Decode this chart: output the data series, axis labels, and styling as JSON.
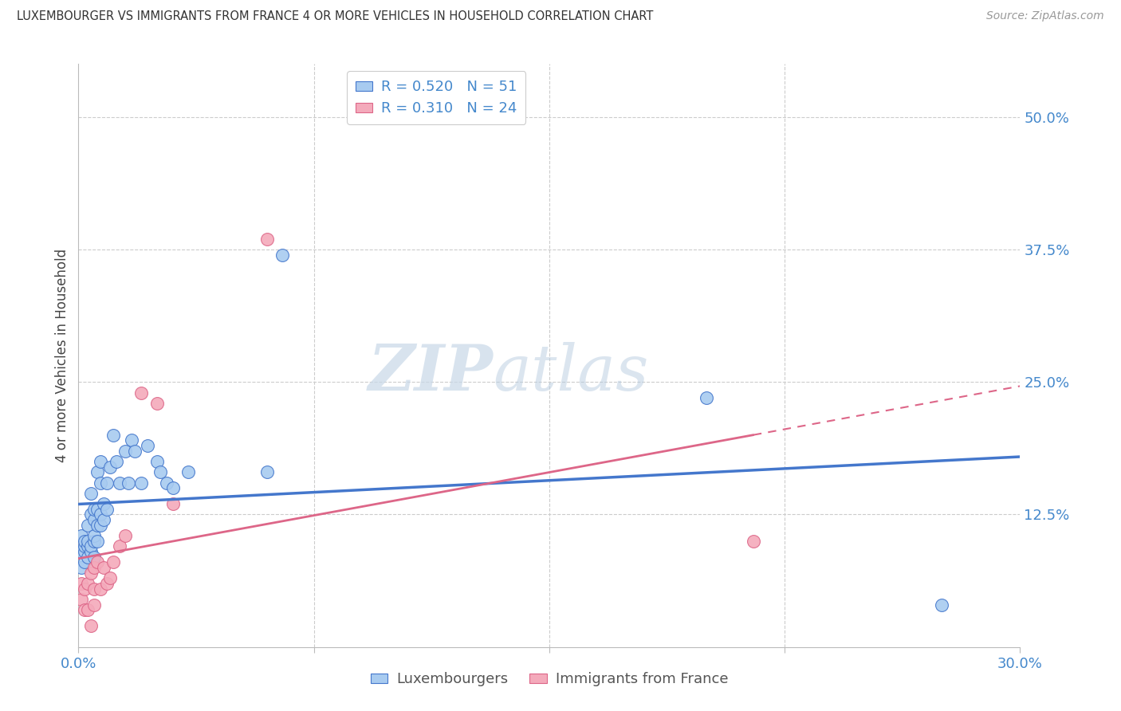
{
  "title": "LUXEMBOURGER VS IMMIGRANTS FROM FRANCE 4 OR MORE VEHICLES IN HOUSEHOLD CORRELATION CHART",
  "source": "Source: ZipAtlas.com",
  "ylabel": "4 or more Vehicles in Household",
  "xlim": [
    0.0,
    0.3
  ],
  "ylim": [
    0.0,
    0.55
  ],
  "yticks_right": [
    0.125,
    0.25,
    0.375,
    0.5
  ],
  "ytick_labels_right": [
    "12.5%",
    "25.0%",
    "37.5%",
    "50.0%"
  ],
  "blue_color": "#A8CBF0",
  "pink_color": "#F4AABB",
  "blue_line_color": "#4477CC",
  "pink_line_color": "#DD6688",
  "legend_blue_label": "R = 0.520   N = 51",
  "legend_pink_label": "R = 0.310   N = 24",
  "legend_label_lux": "Luxembourgers",
  "legend_label_imm": "Immigrants from France",
  "blue_x": [
    0.001,
    0.001,
    0.001,
    0.002,
    0.002,
    0.002,
    0.002,
    0.003,
    0.003,
    0.003,
    0.003,
    0.004,
    0.004,
    0.004,
    0.004,
    0.005,
    0.005,
    0.005,
    0.005,
    0.005,
    0.006,
    0.006,
    0.006,
    0.006,
    0.007,
    0.007,
    0.007,
    0.007,
    0.008,
    0.008,
    0.009,
    0.009,
    0.01,
    0.011,
    0.012,
    0.013,
    0.015,
    0.016,
    0.017,
    0.018,
    0.02,
    0.022,
    0.025,
    0.026,
    0.028,
    0.03,
    0.035,
    0.06,
    0.065,
    0.2,
    0.275
  ],
  "blue_y": [
    0.075,
    0.09,
    0.105,
    0.08,
    0.09,
    0.095,
    0.1,
    0.085,
    0.095,
    0.1,
    0.115,
    0.09,
    0.095,
    0.125,
    0.145,
    0.085,
    0.1,
    0.105,
    0.12,
    0.13,
    0.1,
    0.115,
    0.13,
    0.165,
    0.115,
    0.125,
    0.155,
    0.175,
    0.12,
    0.135,
    0.13,
    0.155,
    0.17,
    0.2,
    0.175,
    0.155,
    0.185,
    0.155,
    0.195,
    0.185,
    0.155,
    0.19,
    0.175,
    0.165,
    0.155,
    0.15,
    0.165,
    0.165,
    0.37,
    0.235,
    0.04
  ],
  "pink_x": [
    0.001,
    0.001,
    0.002,
    0.002,
    0.003,
    0.003,
    0.004,
    0.004,
    0.005,
    0.005,
    0.005,
    0.006,
    0.007,
    0.008,
    0.009,
    0.01,
    0.011,
    0.013,
    0.015,
    0.02,
    0.025,
    0.03,
    0.06,
    0.215
  ],
  "pink_y": [
    0.045,
    0.06,
    0.035,
    0.055,
    0.035,
    0.06,
    0.02,
    0.07,
    0.04,
    0.055,
    0.075,
    0.08,
    0.055,
    0.075,
    0.06,
    0.065,
    0.08,
    0.095,
    0.105,
    0.24,
    0.23,
    0.135,
    0.385,
    0.1
  ],
  "watermark_zip": "ZIP",
  "watermark_atlas": "atlas",
  "background_color": "#FFFFFF",
  "grid_color": "#CCCCCC"
}
